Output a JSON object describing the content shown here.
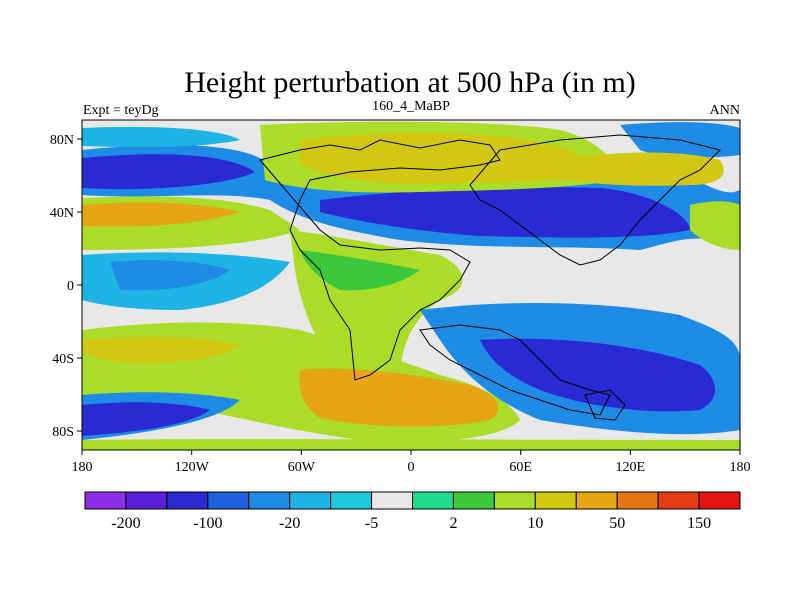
{
  "title": "Height perturbation at 500 hPa (in m)",
  "left_label": "Expt = teyDg",
  "center_label": "160_4_MaBP",
  "right_label": "ANN",
  "lon_ticks": [
    "180",
    "120W",
    "60W",
    "0",
    "60E",
    "120E",
    "180"
  ],
  "lat_ticks": [
    "80N",
    "40N",
    "0",
    "40S",
    "80S"
  ],
  "colorbar": {
    "colors": [
      "#8c30e8",
      "#5a1fd8",
      "#2a2ad4",
      "#1e5fdc",
      "#1e8ce6",
      "#1eb4e6",
      "#1ec8dc",
      "#e8e8e8",
      "#1edc8c",
      "#3cc83c",
      "#aadc28",
      "#d2c814",
      "#e6a514",
      "#e67814",
      "#e63c14",
      "#e61414"
    ],
    "labels": [
      "-200",
      "-100",
      "-20",
      "-5",
      "2",
      "10",
      "50",
      "150"
    ]
  }
}
